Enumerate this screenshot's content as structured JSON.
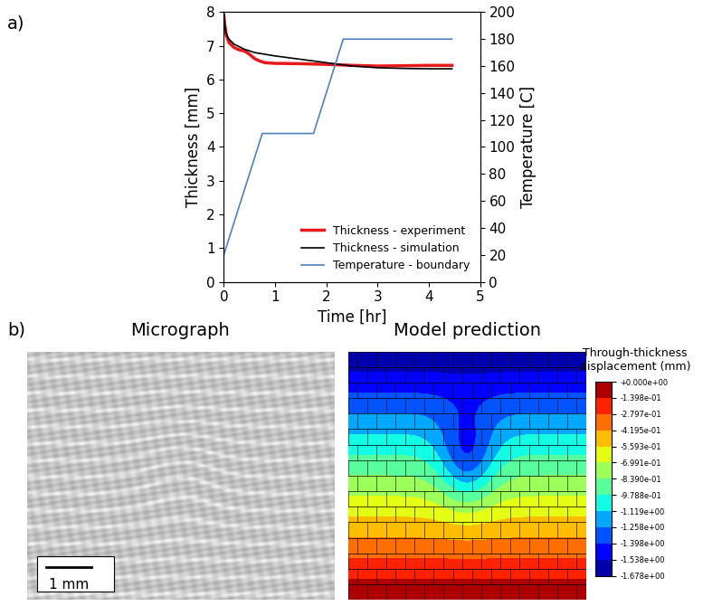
{
  "panel_labels": [
    "a)",
    "b)"
  ],
  "chart_data": [
    {
      "type": "line",
      "xlabel": "Time [hr]",
      "ylabel": "Thickness [mm]",
      "y2label": "Temperature [C]",
      "xlim": [
        0,
        5
      ],
      "xticks": [
        0,
        1,
        2,
        3,
        4,
        5
      ],
      "ylim": [
        0,
        8
      ],
      "yticks": [
        0,
        1,
        2,
        3,
        4,
        5,
        6,
        7,
        8
      ],
      "y2lim": [
        0,
        200
      ],
      "y2ticks": [
        0,
        20,
        40,
        60,
        80,
        100,
        120,
        140,
        160,
        180,
        200
      ],
      "legend": "lower right",
      "series": [
        {
          "name": "Thickness - experiment",
          "color": "#e8191b",
          "line_style": "solid",
          "x": [
            0,
            0.02,
            0.05,
            0.1,
            0.2,
            0.3,
            0.4,
            0.5,
            0.6,
            0.7,
            0.8,
            1.0,
            1.5,
            2.0,
            2.5,
            3.0,
            3.5,
            4.0,
            4.45
          ],
          "values": [
            7.9,
            7.6,
            7.3,
            7.1,
            6.95,
            6.88,
            6.85,
            6.75,
            6.62,
            6.55,
            6.5,
            6.48,
            6.47,
            6.45,
            6.42,
            6.4,
            6.41,
            6.42,
            6.42
          ]
        },
        {
          "name": "Thickness - simulation",
          "color": "#000000",
          "line_style": "solid",
          "x": [
            0,
            0.02,
            0.05,
            0.1,
            0.2,
            0.4,
            0.6,
            0.8,
            1.0,
            1.5,
            2.0,
            2.5,
            3.0,
            3.5,
            4.0,
            4.45
          ],
          "values": [
            8.0,
            7.6,
            7.35,
            7.2,
            7.05,
            6.9,
            6.8,
            6.75,
            6.7,
            6.6,
            6.5,
            6.4,
            6.35,
            6.33,
            6.32,
            6.32
          ]
        },
        {
          "name": "Temperature - boundary",
          "color": "#4f81bd",
          "line_style": "solid",
          "axis": "y2",
          "x": [
            0,
            0.75,
            1.75,
            2.33,
            4.45
          ],
          "values": [
            20,
            110,
            110,
            180,
            180
          ]
        }
      ]
    }
  ],
  "images": {
    "micrograph": {
      "title": "Micrograph",
      "scale_bar": "1 mm"
    },
    "model": {
      "title": "Model prediction",
      "colorbar": {
        "label": "Through-thickness displacement (mm)",
        "lim": [
          -1.678,
          0
        ],
        "ticks": [
          {
            "value": 0,
            "label": "+0.000e+00"
          },
          {
            "value": -0.1398,
            "label": "-1.398e-01"
          },
          {
            "value": -0.2797,
            "label": "-2.797e-01"
          },
          {
            "value": -0.4195,
            "label": "-4.195e-01"
          },
          {
            "value": -0.5593,
            "label": "-5.593e-01"
          },
          {
            "value": -0.6991,
            "label": "-6.991e-01"
          },
          {
            "value": -0.839,
            "label": "-8.390e-01"
          },
          {
            "value": -0.9788,
            "label": "-9.788e-01"
          },
          {
            "value": -1.119,
            "label": "-1.119e+00"
          },
          {
            "value": -1.258,
            "label": "-1.258e+00"
          },
          {
            "value": -1.398,
            "label": "-1.398e+00"
          },
          {
            "value": -1.538,
            "label": "-1.538e+00"
          },
          {
            "value": -1.678,
            "label": "-1.678e+00"
          }
        ]
      }
    }
  }
}
